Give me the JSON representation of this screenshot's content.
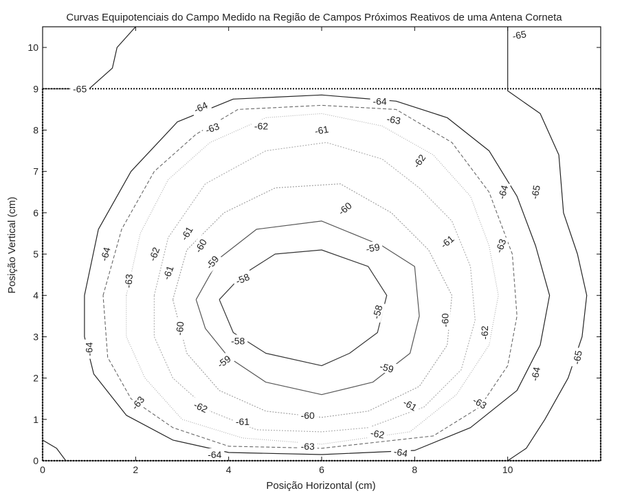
{
  "chart_data": {
    "type": "contour",
    "title": "Curvas Equipotenciais do Campo Medido na Região de Campos Próximos Reativos de uma Antena Corneta",
    "xlabel": "Posição Horizontal (cm)",
    "ylabel": "Posição Vertical (cm)",
    "xlim": [
      0,
      12
    ],
    "ylim": [
      0,
      10.5
    ],
    "xticks": [
      "0",
      "2",
      "4",
      "6",
      "8",
      "10"
    ],
    "yticks": [
      "0",
      "1",
      "2",
      "3",
      "4",
      "5",
      "6",
      "7",
      "8",
      "9",
      "10"
    ],
    "grid": false,
    "boundary_line": {
      "y": 9
    },
    "contours": [
      {
        "level": -58,
        "color": "#333333",
        "dash": "",
        "points": [
          [
            3.8,
            3.9
          ],
          [
            4.3,
            4.5
          ],
          [
            5.0,
            5.0
          ],
          [
            6.0,
            5.1
          ],
          [
            7.0,
            4.7
          ],
          [
            7.4,
            4.0
          ],
          [
            7.2,
            3.1
          ],
          [
            6.6,
            2.6
          ],
          [
            6.0,
            2.3
          ],
          [
            4.8,
            2.6
          ],
          [
            4.1,
            3.1
          ],
          [
            3.8,
            3.9
          ]
        ],
        "labels": [
          {
            "text": "-58",
            "x": 4.3,
            "y": 4.4,
            "angle": -22
          },
          {
            "text": "-58",
            "x": 7.2,
            "y": 3.6,
            "angle": -75
          },
          {
            "text": "-58",
            "x": 4.2,
            "y": 2.9,
            "angle": 0
          }
        ]
      },
      {
        "level": -59,
        "color": "#555555",
        "dash": "",
        "points": [
          [
            3.3,
            3.9
          ],
          [
            3.8,
            4.9
          ],
          [
            4.6,
            5.6
          ],
          [
            6.0,
            5.8
          ],
          [
            7.3,
            5.2
          ],
          [
            8.0,
            4.7
          ],
          [
            8.1,
            3.5
          ],
          [
            7.9,
            2.6
          ],
          [
            7.1,
            1.9
          ],
          [
            6.0,
            1.6
          ],
          [
            4.8,
            1.9
          ],
          [
            4.0,
            2.5
          ],
          [
            3.5,
            3.2
          ],
          [
            3.3,
            3.9
          ]
        ],
        "labels": [
          {
            "text": "-59",
            "x": 3.65,
            "y": 4.8,
            "angle": -50
          },
          {
            "text": "-59",
            "x": 7.1,
            "y": 5.15,
            "angle": -10
          },
          {
            "text": "-59",
            "x": 3.9,
            "y": 2.4,
            "angle": -35
          },
          {
            "text": "-59",
            "x": 7.4,
            "y": 2.25,
            "angle": 15
          }
        ]
      },
      {
        "level": -60,
        "color": "#999999",
        "dash": "2 2",
        "points": [
          [
            2.8,
            3.9
          ],
          [
            3.1,
            5.1
          ],
          [
            3.9,
            6.0
          ],
          [
            5.0,
            6.6
          ],
          [
            6.4,
            6.7
          ],
          [
            7.5,
            6.0
          ],
          [
            8.3,
            5.1
          ],
          [
            8.8,
            4.0
          ],
          [
            8.7,
            2.8
          ],
          [
            8.1,
            1.8
          ],
          [
            7.0,
            1.2
          ],
          [
            6.0,
            1.05
          ],
          [
            4.8,
            1.2
          ],
          [
            3.8,
            1.7
          ],
          [
            3.1,
            2.6
          ],
          [
            2.8,
            3.9
          ]
        ],
        "labels": [
          {
            "text": "-60",
            "x": 3.4,
            "y": 5.2,
            "angle": -60
          },
          {
            "text": "-60",
            "x": 6.5,
            "y": 6.1,
            "angle": -40
          },
          {
            "text": "-60",
            "x": 2.95,
            "y": 3.2,
            "angle": -85
          },
          {
            "text": "-60",
            "x": 8.65,
            "y": 3.4,
            "angle": -90
          },
          {
            "text": "-60",
            "x": 5.7,
            "y": 1.1,
            "angle": 0
          }
        ]
      },
      {
        "level": -61,
        "color": "#aaaaaa",
        "dash": "2 2",
        "points": [
          [
            2.4,
            4.0
          ],
          [
            2.7,
            5.4
          ],
          [
            3.5,
            6.7
          ],
          [
            4.8,
            7.5
          ],
          [
            6.1,
            7.7
          ],
          [
            7.3,
            7.3
          ],
          [
            8.1,
            6.6
          ],
          [
            8.8,
            5.8
          ],
          [
            9.2,
            4.7
          ],
          [
            9.3,
            3.4
          ],
          [
            9.0,
            2.2
          ],
          [
            8.2,
            1.3
          ],
          [
            7.0,
            0.8
          ],
          [
            6.0,
            0.7
          ],
          [
            4.6,
            0.75
          ],
          [
            3.6,
            1.2
          ],
          [
            2.8,
            2.0
          ],
          [
            2.4,
            3.0
          ],
          [
            2.4,
            4.0
          ]
        ],
        "labels": [
          {
            "text": "-61",
            "x": 3.1,
            "y": 5.5,
            "angle": -60
          },
          {
            "text": "-61",
            "x": 6.0,
            "y": 8.0,
            "angle": -10
          },
          {
            "text": "-61",
            "x": 2.7,
            "y": 4.55,
            "angle": -70
          },
          {
            "text": "-61",
            "x": 8.7,
            "y": 5.3,
            "angle": -40
          },
          {
            "text": "-61",
            "x": 4.3,
            "y": 0.95,
            "angle": 0
          },
          {
            "text": "-61",
            "x": 7.9,
            "y": 1.35,
            "angle": 30
          }
        ]
      },
      {
        "level": -62,
        "color": "#aaaaaa",
        "dash": "1 2",
        "points": [
          [
            1.8,
            4.0
          ],
          [
            2.1,
            5.5
          ],
          [
            2.7,
            6.8
          ],
          [
            3.6,
            7.7
          ],
          [
            4.8,
            8.3
          ],
          [
            6.0,
            8.4
          ],
          [
            7.3,
            8.1
          ],
          [
            8.4,
            7.4
          ],
          [
            9.2,
            6.4
          ],
          [
            9.6,
            5.2
          ],
          [
            9.8,
            4.0
          ],
          [
            9.6,
            2.8
          ],
          [
            8.9,
            1.6
          ],
          [
            7.9,
            0.7
          ],
          [
            6.0,
            0.4
          ],
          [
            4.3,
            0.55
          ],
          [
            3.0,
            1.0
          ],
          [
            2.2,
            2.0
          ],
          [
            1.8,
            3.0
          ],
          [
            1.8,
            4.0
          ]
        ],
        "labels": [
          {
            "text": "-62",
            "x": 4.7,
            "y": 8.1,
            "angle": 0
          },
          {
            "text": "-62",
            "x": 8.1,
            "y": 7.25,
            "angle": -55
          },
          {
            "text": "-62",
            "x": 2.4,
            "y": 5.0,
            "angle": -70
          },
          {
            "text": "-62",
            "x": 9.5,
            "y": 3.1,
            "angle": -90
          },
          {
            "text": "-62",
            "x": 3.4,
            "y": 1.3,
            "angle": 25
          },
          {
            "text": "-62",
            "x": 7.2,
            "y": 0.65,
            "angle": 10
          }
        ]
      },
      {
        "level": -63,
        "color": "#666666",
        "dash": "5 3",
        "points": [
          [
            1.3,
            4.0
          ],
          [
            1.7,
            5.6
          ],
          [
            2.4,
            7.0
          ],
          [
            3.3,
            7.9
          ],
          [
            4.2,
            8.5
          ],
          [
            6.0,
            8.6
          ],
          [
            7.6,
            8.5
          ],
          [
            8.8,
            7.7
          ],
          [
            9.6,
            6.5
          ],
          [
            10.1,
            5.0
          ],
          [
            10.2,
            3.5
          ],
          [
            10.0,
            2.3
          ],
          [
            9.4,
            1.3
          ],
          [
            8.4,
            0.6
          ],
          [
            6.0,
            0.3
          ],
          [
            4.0,
            0.35
          ],
          [
            2.8,
            0.8
          ],
          [
            1.9,
            1.5
          ],
          [
            1.4,
            2.5
          ],
          [
            1.3,
            4.0
          ]
        ],
        "labels": [
          {
            "text": "-63",
            "x": 3.65,
            "y": 8.05,
            "angle": -20
          },
          {
            "text": "-63",
            "x": 7.55,
            "y": 8.25,
            "angle": 10
          },
          {
            "text": "-63",
            "x": 1.85,
            "y": 4.35,
            "angle": -85
          },
          {
            "text": "-63",
            "x": 9.85,
            "y": 5.2,
            "angle": -70
          },
          {
            "text": "-63",
            "x": 2.05,
            "y": 1.4,
            "angle": -50
          },
          {
            "text": "-63",
            "x": 5.7,
            "y": 0.35,
            "angle": 0
          },
          {
            "text": "-63",
            "x": 9.4,
            "y": 1.4,
            "angle": 30
          }
        ]
      },
      {
        "level": -64,
        "color": "#222222",
        "dash": "",
        "points": [
          [
            0.9,
            4.0
          ],
          [
            1.2,
            5.6
          ],
          [
            1.9,
            7.0
          ],
          [
            2.9,
            8.2
          ],
          [
            4.1,
            8.75
          ],
          [
            6.0,
            8.85
          ],
          [
            7.6,
            8.7
          ],
          [
            8.7,
            8.3
          ],
          [
            9.6,
            7.5
          ],
          [
            10.2,
            6.4
          ],
          [
            10.6,
            5.2
          ],
          [
            10.9,
            4.0
          ],
          [
            10.7,
            2.8
          ],
          [
            10.2,
            1.7
          ],
          [
            9.2,
            0.8
          ],
          [
            8.0,
            0.25
          ],
          [
            6.0,
            0.15
          ],
          [
            4.0,
            0.2
          ],
          [
            2.8,
            0.5
          ],
          [
            1.8,
            1.1
          ],
          [
            1.1,
            2.1
          ],
          [
            0.9,
            3.0
          ],
          [
            0.9,
            4.0
          ]
        ],
        "labels": [
          {
            "text": "-64",
            "x": 3.4,
            "y": 8.55,
            "angle": -25
          },
          {
            "text": "-64",
            "x": 7.25,
            "y": 8.7,
            "angle": 0
          },
          {
            "text": "-64",
            "x": 1.35,
            "y": 5.0,
            "angle": -75
          },
          {
            "text": "-64",
            "x": 9.9,
            "y": 6.5,
            "angle": -75
          },
          {
            "text": "-64",
            "x": 1.0,
            "y": 2.7,
            "angle": -90
          },
          {
            "text": "-64",
            "x": 10.6,
            "y": 2.1,
            "angle": -80
          },
          {
            "text": "-64",
            "x": 3.7,
            "y": 0.15,
            "angle": 0
          },
          {
            "text": "-64",
            "x": 7.7,
            "y": 0.2,
            "angle": 10
          }
        ]
      },
      {
        "level": -65,
        "color": "#222222",
        "dash": "",
        "points": [
          [
            10.0,
            10.5
          ],
          [
            10.0,
            8.95
          ],
          [
            10.7,
            8.4
          ],
          [
            11.1,
            7.4
          ],
          [
            11.2,
            6.0
          ],
          [
            11.5,
            5.0
          ],
          [
            11.7,
            4.0
          ],
          [
            11.6,
            3.0
          ],
          [
            11.3,
            2.0
          ],
          [
            10.8,
            1.0
          ],
          [
            10.4,
            0.3
          ],
          [
            10.0,
            0.0
          ]
        ],
        "labels": [
          {
            "text": "-65",
            "x": 10.6,
            "y": 6.5,
            "angle": -80
          },
          {
            "text": "-65",
            "x": 11.5,
            "y": 2.5,
            "angle": -80
          }
        ]
      },
      {
        "level": -65,
        "color": "#222222",
        "dash": "",
        "points": [
          [
            2.0,
            10.5
          ],
          [
            1.6,
            10.0
          ],
          [
            1.5,
            9.5
          ],
          [
            1.0,
            9.0
          ],
          [
            0.0,
            9.0
          ]
        ],
        "labels": [
          {
            "text": "-65",
            "x": 0.8,
            "y": 9.0,
            "angle": 0
          },
          {
            "text": "-65",
            "x": 10.25,
            "y": 10.3,
            "angle": -10
          }
        ]
      },
      {
        "level": -65,
        "color": "#222222",
        "dash": "",
        "points": [
          [
            0.0,
            0.5
          ],
          [
            0.3,
            0.3
          ],
          [
            0.5,
            0.0
          ]
        ],
        "labels": []
      }
    ]
  }
}
